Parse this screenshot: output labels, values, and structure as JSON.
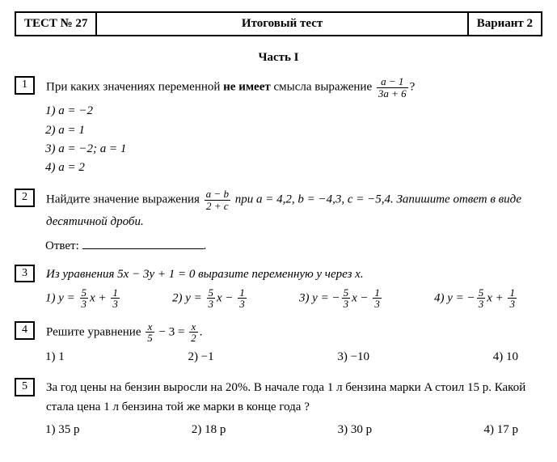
{
  "header": {
    "left": "ТЕСТ № 27",
    "center": "Итоговый тест",
    "right": "Вариант 2"
  },
  "partTitle": "Часть I",
  "q1": {
    "num": "1",
    "text_a": "При каких значениях переменной ",
    "bold": "не имеет",
    "text_b": " смысла выражение ",
    "frac_num": "a − 1",
    "frac_den": "3a + 6",
    "tail": "?",
    "o1": "1) a = −2",
    "o2": "2) a = 1",
    "o3": "3) a = −2; a = 1",
    "o4": "4) a = 2"
  },
  "q2": {
    "num": "2",
    "text_a": "Найдите значение выражения ",
    "frac_num": "a − b",
    "frac_den": "2 + c",
    "text_b": " при a = 4,2, b = −4,3, c = −5,4. Запишите ответ в виде десятичной дроби.",
    "answer_label": "Ответ: ",
    "period": "."
  },
  "q3": {
    "num": "3",
    "text": "Из уравнения 5x − 3y + 1 = 0 выразите переменную y через x.",
    "o1p": "1) y = ",
    "o1n": "5",
    "o1d": "3",
    "o1m": "x + ",
    "o1n2": "1",
    "o1d2": "3",
    "o2p": "2) y = ",
    "o2n": "5",
    "o2d": "3",
    "o2m": "x − ",
    "o2n2": "1",
    "o2d2": "3",
    "o3p": "3) y = −",
    "o3n": "5",
    "o3d": "3",
    "o3m": "x − ",
    "o3n2": "1",
    "o3d2": "3",
    "o4p": "4) y = −",
    "o4n": "5",
    "o4d": "3",
    "o4m": "x + ",
    "o4n2": "1",
    "o4d2": "3"
  },
  "q4": {
    "num": "4",
    "text_a": "Решите уравнение ",
    "f1n": "x",
    "f1d": "5",
    "mid": " − 3 = ",
    "f2n": "x",
    "f2d": "2",
    "tail": ".",
    "o1": "1) 1",
    "o2": "2) −1",
    "o3": "3) −10",
    "o4": "4) 10"
  },
  "q5": {
    "num": "5",
    "text": "За год цены на бензин выросли на 20%. В начале года 1 л бензина марки A стоил 15 р. Какой стала цена 1 л бензина той же марки в конце года ?",
    "o1": "1) 35 р",
    "o2": "2) 18 р",
    "o3": "3) 30 р",
    "o4": "4) 17 р"
  }
}
